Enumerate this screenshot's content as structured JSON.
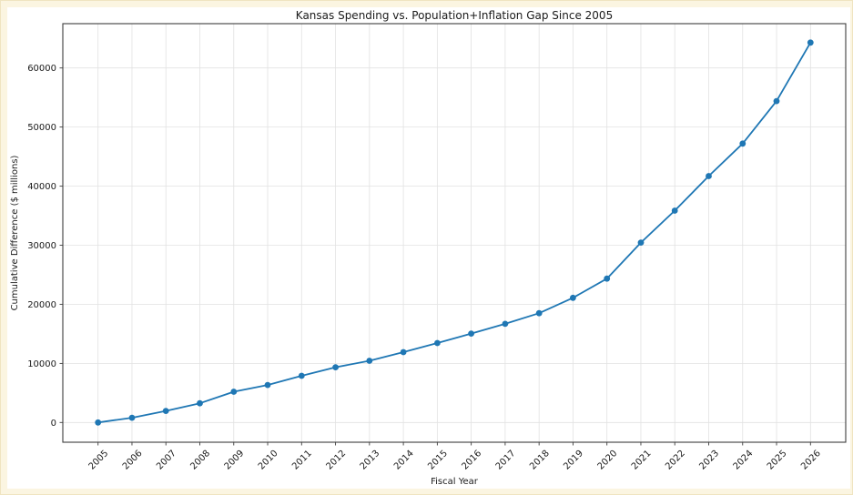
{
  "frame": {
    "background": "#fbf5e1",
    "border_color": "#efe4c0",
    "figure_background": "#ffffff"
  },
  "chart_data": {
    "type": "line",
    "title": "Kansas Spending vs. Population+Inflation Gap Since 2005",
    "xlabel": "Fiscal Year",
    "ylabel": "Cumulative Difference ($ millions)",
    "x": [
      "2005",
      "2006",
      "2007",
      "2008",
      "2009",
      "2010",
      "2011",
      "2012",
      "2013",
      "2014",
      "2015",
      "2016",
      "2017",
      "2018",
      "2019",
      "2020",
      "2021",
      "2022",
      "2023",
      "2024",
      "2025",
      "2026"
    ],
    "values": [
      0,
      800,
      1950,
      3250,
      5200,
      6350,
      7900,
      9350,
      10450,
      11900,
      13450,
      15050,
      16700,
      18500,
      21100,
      24350,
      30450,
      35850,
      41700,
      47200,
      54400,
      64300
    ],
    "yticks": [
      0,
      10000,
      20000,
      30000,
      40000,
      50000,
      60000
    ],
    "ylim": [
      -3340,
      67500
    ],
    "grid": true,
    "legend": "none",
    "x_tick_rotation": 45,
    "line_color": "#1f77b4",
    "marker": "circle",
    "marker_radius": 3.4,
    "text_color": "#1a1a1a",
    "grid_color": "#e2e2e2",
    "spine_color": "#3d3d3d"
  }
}
